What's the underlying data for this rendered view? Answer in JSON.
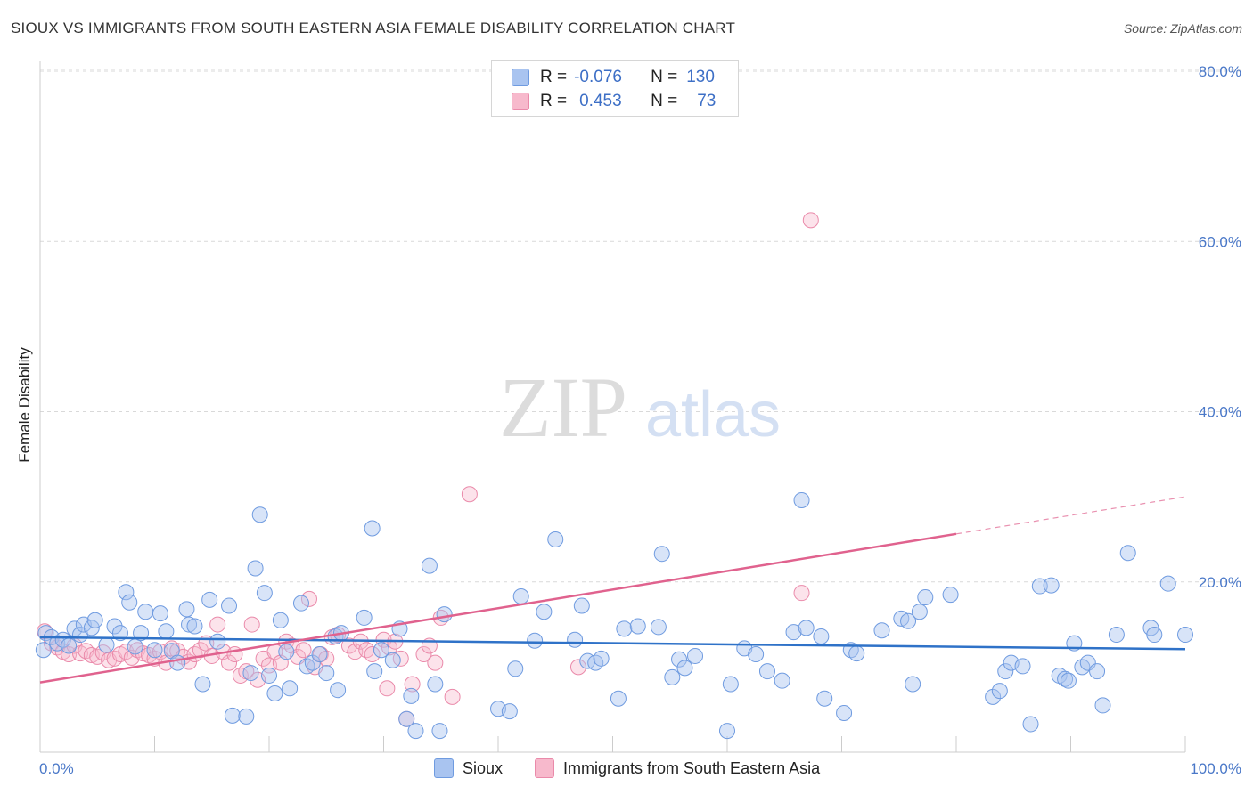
{
  "header": {
    "title": "SIOUX VS IMMIGRANTS FROM SOUTH EASTERN ASIA FEMALE DISABILITY CORRELATION CHART",
    "source": "Source: ZipAtlas.com"
  },
  "watermark": {
    "part1": "ZIP",
    "part2": "atlas"
  },
  "legend": {
    "rows": [
      {
        "r_label": "R =",
        "r_value": "-0.076",
        "n_label": "N =",
        "n_value": "130",
        "color": "#a9c4f0",
        "border": "#6f9be0"
      },
      {
        "r_label": "R =",
        "r_value": "0.453",
        "n_label": "N =",
        "n_value": "73",
        "color": "#f7b9cc",
        "border": "#ea8aaa"
      }
    ]
  },
  "bottom_legend": [
    {
      "label": "Sioux",
      "color": "#a9c4f0",
      "border": "#6f9be0"
    },
    {
      "label": "Immigrants from South Eastern Asia",
      "color": "#f7b9cc",
      "border": "#ea8aaa"
    }
  ],
  "chart_data": {
    "type": "scatter",
    "title": "SIOUX VS IMMIGRANTS FROM SOUTH EASTERN ASIA FEMALE DISABILITY CORRELATION CHART",
    "xlabel": "",
    "ylabel": "Female Disability",
    "xlim": [
      0,
      100
    ],
    "ylim": [
      0,
      80
    ],
    "x_tick_labels": [
      "0.0%",
      "100.0%"
    ],
    "y_ticks": [
      20,
      40,
      60,
      80
    ],
    "y_tick_labels": [
      "20.0%",
      "40.0%",
      "60.0%",
      "80.0%"
    ],
    "grid": true,
    "series": [
      {
        "name": "Sioux",
        "color": "#6f9be0",
        "fill": "#a9c4f0",
        "line_color": "#2f72c8",
        "trend": {
          "x": [
            0,
            100
          ],
          "y": [
            13.5,
            12.1
          ],
          "solid_to": 100
        },
        "points": [
          [
            0.3,
            12.0
          ],
          [
            0.5,
            14.0
          ],
          [
            1.0,
            13.5
          ],
          [
            1.5,
            12.8
          ],
          [
            2.0,
            13.2
          ],
          [
            2.5,
            12.5
          ],
          [
            3.0,
            14.5
          ],
          [
            3.5,
            13.8
          ],
          [
            3.8,
            15.0
          ],
          [
            4.5,
            14.6
          ],
          [
            4.8,
            15.5
          ],
          [
            5.8,
            12.6
          ],
          [
            6.5,
            14.8
          ],
          [
            7.0,
            14.0
          ],
          [
            7.5,
            18.8
          ],
          [
            7.8,
            17.6
          ],
          [
            8.3,
            12.4
          ],
          [
            8.8,
            14.0
          ],
          [
            9.2,
            16.5
          ],
          [
            10.0,
            12.0
          ],
          [
            10.5,
            16.3
          ],
          [
            11.0,
            14.2
          ],
          [
            11.5,
            11.9
          ],
          [
            12.0,
            10.5
          ],
          [
            12.8,
            16.8
          ],
          [
            13.0,
            15.0
          ],
          [
            13.5,
            14.8
          ],
          [
            14.2,
            8.0
          ],
          [
            14.8,
            17.9
          ],
          [
            15.5,
            13.0
          ],
          [
            16.5,
            17.2
          ],
          [
            16.8,
            4.3
          ],
          [
            18.0,
            4.2
          ],
          [
            18.4,
            9.3
          ],
          [
            18.8,
            21.6
          ],
          [
            19.2,
            27.9
          ],
          [
            19.6,
            18.7
          ],
          [
            20.0,
            9.0
          ],
          [
            20.5,
            6.9
          ],
          [
            21.0,
            15.5
          ],
          [
            21.5,
            11.8
          ],
          [
            21.8,
            7.5
          ],
          [
            22.8,
            17.5
          ],
          [
            23.3,
            10.1
          ],
          [
            23.8,
            10.5
          ],
          [
            24.4,
            11.5
          ],
          [
            25.0,
            9.3
          ],
          [
            25.8,
            13.6
          ],
          [
            26.0,
            7.3
          ],
          [
            26.3,
            14.0
          ],
          [
            28.3,
            15.8
          ],
          [
            29.0,
            26.3
          ],
          [
            29.2,
            9.5
          ],
          [
            29.8,
            12.0
          ],
          [
            30.8,
            10.8
          ],
          [
            31.4,
            14.5
          ],
          [
            32.0,
            3.9
          ],
          [
            32.4,
            6.6
          ],
          [
            32.8,
            2.5
          ],
          [
            34.0,
            21.9
          ],
          [
            34.5,
            8.0
          ],
          [
            34.9,
            2.5
          ],
          [
            35.3,
            16.2
          ],
          [
            40.0,
            5.1
          ],
          [
            41.0,
            4.8
          ],
          [
            41.5,
            9.8
          ],
          [
            42.0,
            18.3
          ],
          [
            43.2,
            13.1
          ],
          [
            44.0,
            16.5
          ],
          [
            45.0,
            25.0
          ],
          [
            46.7,
            13.2
          ],
          [
            47.3,
            17.2
          ],
          [
            47.8,
            10.7
          ],
          [
            48.5,
            10.5
          ],
          [
            49.0,
            11.0
          ],
          [
            50.5,
            6.3
          ],
          [
            51.0,
            14.5
          ],
          [
            52.2,
            14.8
          ],
          [
            54.0,
            14.7
          ],
          [
            54.3,
            23.3
          ],
          [
            55.2,
            8.8
          ],
          [
            55.8,
            10.9
          ],
          [
            56.3,
            9.9
          ],
          [
            57.2,
            11.3
          ],
          [
            60.0,
            2.5
          ],
          [
            60.3,
            8.0
          ],
          [
            61.5,
            12.2
          ],
          [
            62.5,
            11.5
          ],
          [
            63.5,
            9.5
          ],
          [
            64.8,
            8.4
          ],
          [
            65.8,
            14.1
          ],
          [
            66.5,
            29.6
          ],
          [
            66.9,
            14.6
          ],
          [
            68.2,
            13.6
          ],
          [
            68.5,
            6.3
          ],
          [
            70.2,
            4.6
          ],
          [
            70.8,
            12.0
          ],
          [
            71.3,
            11.6
          ],
          [
            73.5,
            14.3
          ],
          [
            75.2,
            15.7
          ],
          [
            75.8,
            15.4
          ],
          [
            76.2,
            8.0
          ],
          [
            76.8,
            16.5
          ],
          [
            77.3,
            18.2
          ],
          [
            79.5,
            18.5
          ],
          [
            83.2,
            6.5
          ],
          [
            83.8,
            7.2
          ],
          [
            84.3,
            9.5
          ],
          [
            84.8,
            10.5
          ],
          [
            85.8,
            10.1
          ],
          [
            86.5,
            3.3
          ],
          [
            87.3,
            19.5
          ],
          [
            88.3,
            19.6
          ],
          [
            89.0,
            9.0
          ],
          [
            89.5,
            8.6
          ],
          [
            89.8,
            8.4
          ],
          [
            90.3,
            12.8
          ],
          [
            91.0,
            10.0
          ],
          [
            91.5,
            10.5
          ],
          [
            92.3,
            9.5
          ],
          [
            92.8,
            5.5
          ],
          [
            94.0,
            13.8
          ],
          [
            95.0,
            23.4
          ],
          [
            97.0,
            14.6
          ],
          [
            97.3,
            13.8
          ],
          [
            98.5,
            19.8
          ],
          [
            100.0,
            13.8
          ]
        ]
      },
      {
        "name": "Immigrants from South Eastern Asia",
        "color": "#ea8aaa",
        "fill": "#f7b9cc",
        "line_color": "#e0628e",
        "trend": {
          "x": [
            0,
            100
          ],
          "y": [
            8.2,
            30.0
          ],
          "solid_to": 80
        },
        "points": [
          [
            0.4,
            14.2
          ],
          [
            1.0,
            12.8
          ],
          [
            1.5,
            12.3
          ],
          [
            2.0,
            11.8
          ],
          [
            2.5,
            11.5
          ],
          [
            3.0,
            12.5
          ],
          [
            3.5,
            11.6
          ],
          [
            4.0,
            11.9
          ],
          [
            4.5,
            11.4
          ],
          [
            5.0,
            11.2
          ],
          [
            5.5,
            11.7
          ],
          [
            6.0,
            10.8
          ],
          [
            6.5,
            11.0
          ],
          [
            7.0,
            11.5
          ],
          [
            7.5,
            11.8
          ],
          [
            8.0,
            11.1
          ],
          [
            8.5,
            12.0
          ],
          [
            9.0,
            11.6
          ],
          [
            9.5,
            11.4
          ],
          [
            10.0,
            11.0
          ],
          [
            10.5,
            11.8
          ],
          [
            11.0,
            10.5
          ],
          [
            11.5,
            12.2
          ],
          [
            12.0,
            11.9
          ],
          [
            12.5,
            11.2
          ],
          [
            13.0,
            10.6
          ],
          [
            13.5,
            11.5
          ],
          [
            14.0,
            12.0
          ],
          [
            14.5,
            12.8
          ],
          [
            15.0,
            11.3
          ],
          [
            15.5,
            15.0
          ],
          [
            16.0,
            11.8
          ],
          [
            16.5,
            10.5
          ],
          [
            17.0,
            11.5
          ],
          [
            17.5,
            9.0
          ],
          [
            18.0,
            9.5
          ],
          [
            18.5,
            15.0
          ],
          [
            19.0,
            8.5
          ],
          [
            19.5,
            11.0
          ],
          [
            20.0,
            10.2
          ],
          [
            20.5,
            11.8
          ],
          [
            21.0,
            10.5
          ],
          [
            21.5,
            13.0
          ],
          [
            22.0,
            12.5
          ],
          [
            22.5,
            11.2
          ],
          [
            23.0,
            12.0
          ],
          [
            23.5,
            18.0
          ],
          [
            24.0,
            10.0
          ],
          [
            24.5,
            11.5
          ],
          [
            25.0,
            11.0
          ],
          [
            25.5,
            13.5
          ],
          [
            26.0,
            13.8
          ],
          [
            27.0,
            12.5
          ],
          [
            27.5,
            11.8
          ],
          [
            28.0,
            13.0
          ],
          [
            28.5,
            12.0
          ],
          [
            29.0,
            11.5
          ],
          [
            30.0,
            13.2
          ],
          [
            30.5,
            12.3
          ],
          [
            31.0,
            13.0
          ],
          [
            31.5,
            11.0
          ],
          [
            32.0,
            3.9
          ],
          [
            32.5,
            8.0
          ],
          [
            33.5,
            11.5
          ],
          [
            34.0,
            12.5
          ],
          [
            34.5,
            10.5
          ],
          [
            35.0,
            15.8
          ],
          [
            36.0,
            6.5
          ],
          [
            37.5,
            30.3
          ],
          [
            47.0,
            10.0
          ],
          [
            66.5,
            18.7
          ],
          [
            67.3,
            62.5
          ],
          [
            30.3,
            7.5
          ]
        ]
      }
    ]
  }
}
